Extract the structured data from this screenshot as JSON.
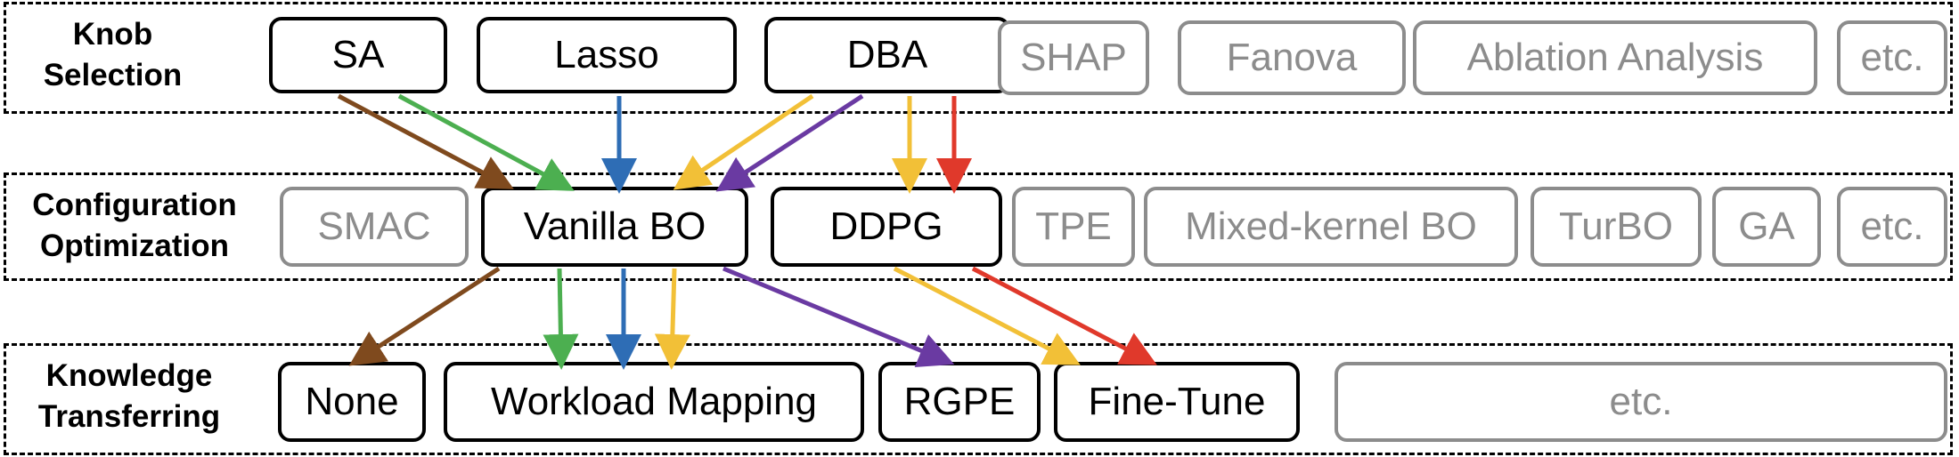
{
  "colors": {
    "brown": "#7f4a1e",
    "green": "#4caf50",
    "blue": "#2e6db5",
    "yellow": "#f2c037",
    "purple": "#6a3aa2",
    "red": "#e0392b",
    "inactive": "#8c8c8c"
  },
  "rows": {
    "knob": {
      "label_line1": "Knob",
      "label_line2": "Selection",
      "boxes": [
        "SA",
        "Lasso",
        "DBA",
        "SHAP",
        "Fanova",
        "Ablation Analysis",
        "etc."
      ]
    },
    "config": {
      "label_line1": "Configuration",
      "label_line2": "Optimization",
      "boxes": [
        "SMAC",
        "Vanilla BO",
        "DDPG",
        "TPE",
        "Mixed-kernel BO",
        "TurBO",
        "GA",
        "etc."
      ]
    },
    "transfer": {
      "label_line1": "Knowledge",
      "label_line2": "Transferring",
      "boxes": [
        "None",
        "Workload Mapping",
        "RGPE",
        "Fine-Tune",
        "etc."
      ]
    }
  },
  "arrows": [
    {
      "from": "SA",
      "to": "Vanilla BO",
      "color": "brown"
    },
    {
      "from": "SA",
      "to": "Vanilla BO",
      "color": "green"
    },
    {
      "from": "Lasso",
      "to": "Vanilla BO",
      "color": "blue"
    },
    {
      "from": "DBA",
      "to": "Vanilla BO",
      "color": "yellow"
    },
    {
      "from": "DBA",
      "to": "Vanilla BO",
      "color": "purple"
    },
    {
      "from": "DBA",
      "to": "DDPG",
      "color": "yellow"
    },
    {
      "from": "DBA",
      "to": "DDPG",
      "color": "red"
    },
    {
      "from": "Vanilla BO",
      "to": "None",
      "color": "brown"
    },
    {
      "from": "Vanilla BO",
      "to": "Workload Mapping",
      "color": "green"
    },
    {
      "from": "Vanilla BO",
      "to": "Workload Mapping",
      "color": "blue"
    },
    {
      "from": "Vanilla BO",
      "to": "Workload Mapping",
      "color": "yellow"
    },
    {
      "from": "Vanilla BO",
      "to": "RGPE",
      "color": "purple"
    },
    {
      "from": "DDPG",
      "to": "Fine-Tune",
      "color": "yellow"
    },
    {
      "from": "DDPG",
      "to": "Fine-Tune",
      "color": "red"
    }
  ]
}
